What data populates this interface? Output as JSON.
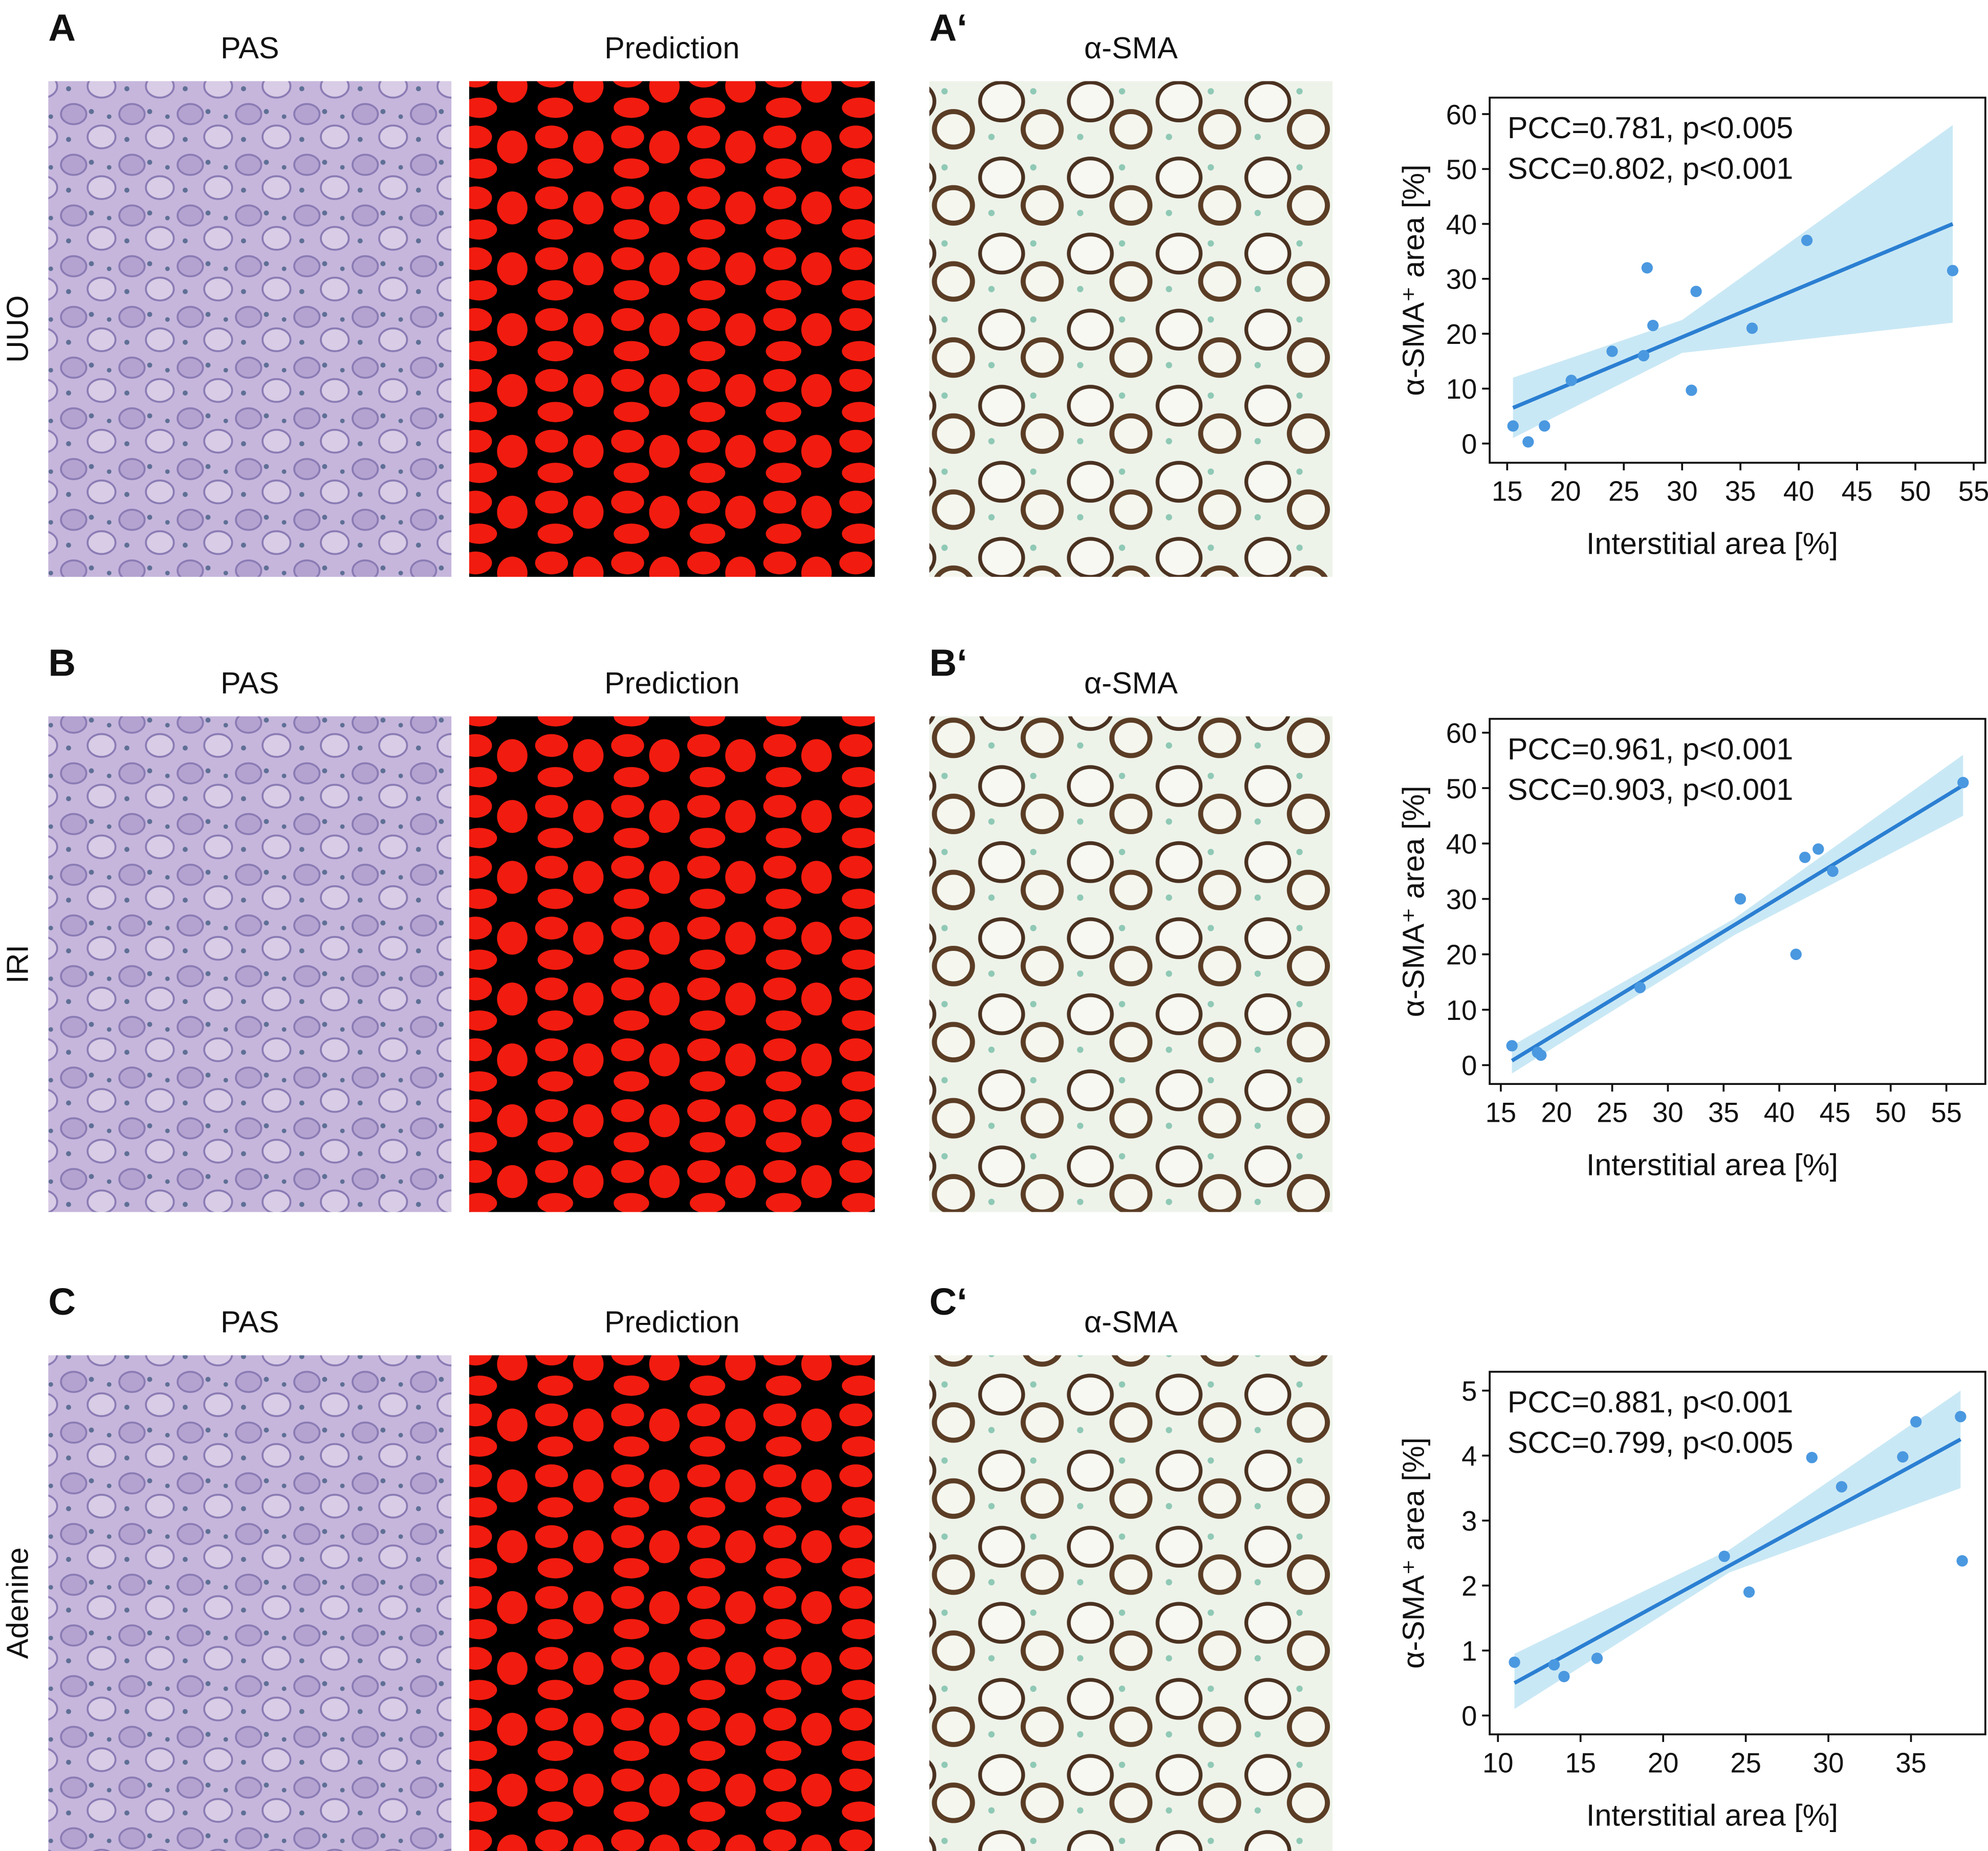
{
  "figure": {
    "rows": [
      {
        "letter": "A",
        "prime": "A‘",
        "row_label": "UUO",
        "titles": [
          "PAS",
          "Prediction",
          "α-SMA"
        ]
      },
      {
        "letter": "B",
        "prime": "B‘",
        "row_label": "IRI",
        "titles": [
          "PAS",
          "Prediction",
          "α-SMA"
        ]
      },
      {
        "letter": "C",
        "prime": "C‘",
        "row_label": "Adenine",
        "titles": [
          "PAS",
          "Prediction",
          "α-SMA"
        ]
      }
    ]
  },
  "chart_data": [
    {
      "type": "scatter",
      "color": "#4a98e0",
      "x": [
        15.5,
        16.8,
        18.2,
        20.5,
        24,
        26.7,
        27,
        27.5,
        30.8,
        31.2,
        36,
        40.7,
        53.2
      ],
      "values": [
        3.2,
        0.3,
        3.2,
        11.5,
        16.8,
        16,
        32,
        21.5,
        9.7,
        27.7,
        21,
        37,
        31.5
      ],
      "xlim": [
        13.5,
        56
      ],
      "ylim": [
        -3.5,
        63
      ],
      "xticks": [
        15,
        20,
        25,
        30,
        35,
        40,
        45,
        50,
        55
      ],
      "yticks": [
        0,
        10,
        20,
        30,
        40,
        50,
        60
      ],
      "x_label": "Interstitial area [%]",
      "y_label": "α-SMA⁺ area [%]",
      "annotations": [
        "PCC=0.781, p<0.005",
        "SCC=0.802, p<0.001"
      ],
      "fit": {
        "x": [
          15.5,
          53.2
        ],
        "values": [
          6.5,
          40
        ],
        "color": "#2b7fd2"
      },
      "band": {
        "x": [
          15.5,
          30,
          53.2
        ],
        "lower": [
          1,
          16.5,
          22
        ],
        "upper": [
          12,
          22.5,
          58
        ],
        "color": "#bfe4f3"
      }
    },
    {
      "type": "scatter",
      "color": "#4a98e0",
      "x": [
        16,
        18.3,
        18.6,
        27.5,
        36.5,
        41.5,
        42.3,
        43.5,
        44.8,
        56.5
      ],
      "values": [
        3.5,
        2.3,
        1.8,
        14,
        30,
        20,
        37.5,
        39,
        35,
        51
      ],
      "xlim": [
        14,
        58.5
      ],
      "ylim": [
        -3.4,
        62.5
      ],
      "xticks": [
        15,
        20,
        25,
        30,
        35,
        40,
        45,
        50,
        55
      ],
      "yticks": [
        0,
        10,
        20,
        30,
        40,
        50,
        60
      ],
      "x_label": "Interstitial area [%]",
      "y_label": "α-SMA⁺ area [%]",
      "annotations": [
        "PCC=0.961, p<0.001",
        "SCC=0.903, p<0.001"
      ],
      "fit": {
        "x": [
          16,
          56.5
        ],
        "values": [
          0.8,
          50.5
        ],
        "color": "#2b7fd2"
      },
      "band": {
        "x": [
          16,
          36,
          56.5
        ],
        "lower": [
          -1.5,
          23.5,
          45
        ],
        "upper": [
          3.5,
          26.5,
          56
        ],
        "color": "#bfe4f3"
      }
    },
    {
      "type": "scatter",
      "color": "#4a98e0",
      "x": [
        11,
        13.4,
        14,
        16,
        23.7,
        25.2,
        29,
        30.8,
        34.5,
        35.3,
        38,
        38.1
      ],
      "values": [
        0.82,
        0.78,
        0.6,
        0.88,
        2.45,
        1.9,
        3.97,
        3.52,
        3.98,
        4.52,
        4.6,
        2.38
      ],
      "xlim": [
        9.5,
        39.5
      ],
      "ylim": [
        -0.29,
        5.29
      ],
      "xticks": [
        10,
        15,
        20,
        25,
        30,
        35
      ],
      "yticks": [
        0,
        1,
        2,
        3,
        4,
        5
      ],
      "x_label": "Interstitial area [%]",
      "y_label": "α-SMA⁺ area [%]",
      "annotations": [
        "PCC=0.881, p<0.001",
        "SCC=0.799, p<0.005"
      ],
      "fit": {
        "x": [
          11,
          38
        ],
        "values": [
          0.5,
          4.25
        ],
        "color": "#2b7fd2"
      },
      "band": {
        "x": [
          11,
          24,
          38
        ],
        "lower": [
          0.1,
          2.2,
          3.5
        ],
        "upper": [
          0.95,
          2.55,
          5.0
        ],
        "color": "#bfe4f3"
      }
    }
  ]
}
